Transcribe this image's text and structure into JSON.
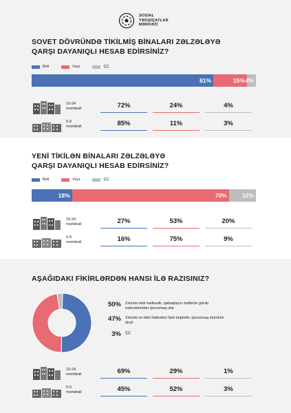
{
  "header": {
    "org_line1": "SOSİAL",
    "org_line2": "TƏDQİQATLAR",
    "org_line3": "MƏRKƏZİ"
  },
  "colors": {
    "yes": "#4a72b5",
    "no": "#e86a72",
    "dk": "#bdbdbd"
  },
  "section1": {
    "title_line1": "SOVET DÖVRÜNDƏ TİKİLMİŞ BİNALARI ZƏLZƏLƏYƏ",
    "title_line2": "QARŞI DAYANIQLI HESAB EDİRSİNİZ?",
    "legend": [
      "Bəli",
      "Xeyr",
      "ÇÇ"
    ],
    "rows": [
      {
        "label_line1": "10-24",
        "label_line2": "mərtəbəli",
        "values": [
          "72%",
          "24%",
          "4%"
        ]
      },
      {
        "label_line1": "5-9",
        "label_line2": "mərtəbəli",
        "values": [
          "85%",
          "11%",
          "3%"
        ]
      }
    ]
  },
  "section2": {
    "title_line1": "YENİ TİKİLƏN BİNALARI ZƏLZƏLƏYƏ",
    "title_line2": "QARŞI DAYANIQLI HESAB EDİRSİNİZ?",
    "legend": [
      "Bəli",
      "Xeyr",
      "ÇÇ"
    ],
    "rows": [
      {
        "label_line1": "10-24",
        "label_line2": "mərtəbəli",
        "values": [
          "27%",
          "53%",
          "20%"
        ]
      },
      {
        "label_line1": "5-9",
        "label_line2": "mərtəbəli",
        "values": [
          "16%",
          "75%",
          "9%"
        ]
      }
    ]
  },
  "section3": {
    "title": "AŞAĞIDAKI FİKİRLƏRDƏN HANSI İLƏ RAZISINIZ?",
    "annotations": [
      {
        "value": "50%",
        "text": "Zəlzələ təbii hadisədir, qabaqlayıcı tədbirlər görüb nəticələrindən qorunmaq olar"
      },
      {
        "value": "47%",
        "text": "Zəlzələ və təbii fəlakətlər İlahi təqdirdir, qorunmaq mümkün deyil"
      },
      {
        "value": "3%",
        "text": "ÇÇ"
      }
    ],
    "rows": [
      {
        "label_line1": "10-24",
        "label_line2": "mərtəbəli",
        "values": [
          "69%",
          "29%",
          "1%"
        ]
      },
      {
        "label_line1": "5-9",
        "label_line2": "mərtəbəli",
        "values": [
          "45%",
          "52%",
          "3%"
        ]
      }
    ]
  },
  "chart_data": [
    {
      "type": "bar",
      "title": "SOVET DÖVRÜNDƏ TİKİLMİŞ BİNALARI ZƏLZƏLƏYƏ QARŞI DAYANIQLI HESAB EDİRSİNİZ?",
      "categories": [
        "Bəli",
        "Xeyr",
        "ÇÇ"
      ],
      "values": [
        81,
        15,
        4
      ],
      "labels": [
        "81%",
        "15%",
        "4%"
      ],
      "colors": [
        "#4a72b5",
        "#e86a72",
        "#bdbdbd"
      ]
    },
    {
      "type": "bar",
      "title": "YENİ TİKİLƏN BİNALARI ZƏLZƏLƏYƏ QARŞI DAYANIQLI HESAB EDİRSİNİZ?",
      "categories": [
        "Bəli",
        "Xeyr",
        "ÇÇ"
      ],
      "values": [
        18,
        70,
        12
      ],
      "labels": [
        "18%",
        "70%",
        "12%"
      ],
      "colors": [
        "#4a72b5",
        "#e86a72",
        "#bdbdbd"
      ]
    },
    {
      "type": "pie",
      "title": "AŞAĞIDAKI FİKİRLƏRDƏN HANSI İLƏ RAZISINIZ?",
      "categories": [
        "Zəlzələ təbii hadisədir, qabaqlayıcı tədbirlər görüb nəticələrindən qorunmaq olar",
        "Zəlzələ və təbii fəlakətlər İlahi təqdirdir, qorunmaq mümkün deyil",
        "ÇÇ"
      ],
      "values": [
        50,
        47,
        3
      ],
      "colors": [
        "#4a72b5",
        "#e86a72",
        "#bdbdbd"
      ]
    }
  ]
}
